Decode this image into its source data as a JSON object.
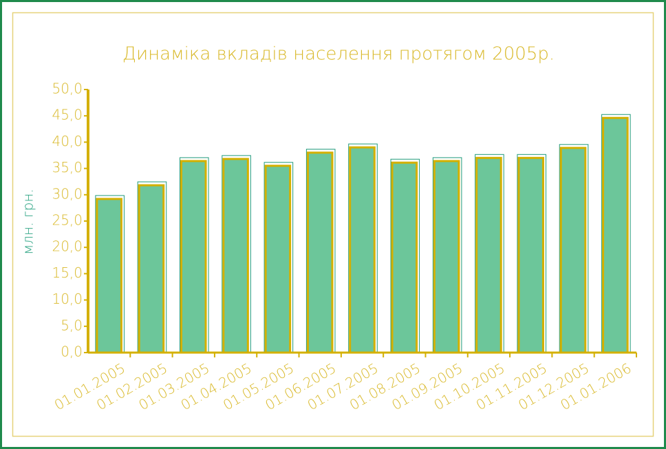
{
  "chart_data": {
    "type": "bar",
    "title": "Динаміка вкладів населення протягом 2005р.",
    "y_label": "млн. грн.",
    "categories": [
      "01.01.2005",
      "01.02.2005",
      "01.03.2005",
      "01.04.2005",
      "01.05.2005",
      "01.06.2005",
      "01.07.2005",
      "01.08.2005",
      "01.09.2005",
      "01.10.2005",
      "01.11.2005",
      "01.12.2005",
      "01.01.2006"
    ],
    "values": [
      29.2,
      31.8,
      36.4,
      36.8,
      35.5,
      38.0,
      39.0,
      36.1,
      36.4,
      37.0,
      37.0,
      38.9,
      44.6
    ],
    "color": "#6cc69a",
    "ylim": [
      0,
      50
    ],
    "yticks": [
      {
        "value": 0,
        "label": "0,0"
      },
      {
        "value": 5,
        "label": "5,0"
      },
      {
        "value": 10,
        "label": "10,0"
      },
      {
        "value": 15,
        "label": "15,0"
      },
      {
        "value": 20,
        "label": "20,0"
      },
      {
        "value": 25,
        "label": "25,0"
      },
      {
        "value": 30,
        "label": "30,0"
      },
      {
        "value": 35,
        "label": "35,0"
      },
      {
        "value": 40,
        "label": "40,0"
      },
      {
        "value": 45,
        "label": "45,0"
      },
      {
        "value": 50,
        "label": "50,0"
      }
    ],
    "grid": false
  }
}
